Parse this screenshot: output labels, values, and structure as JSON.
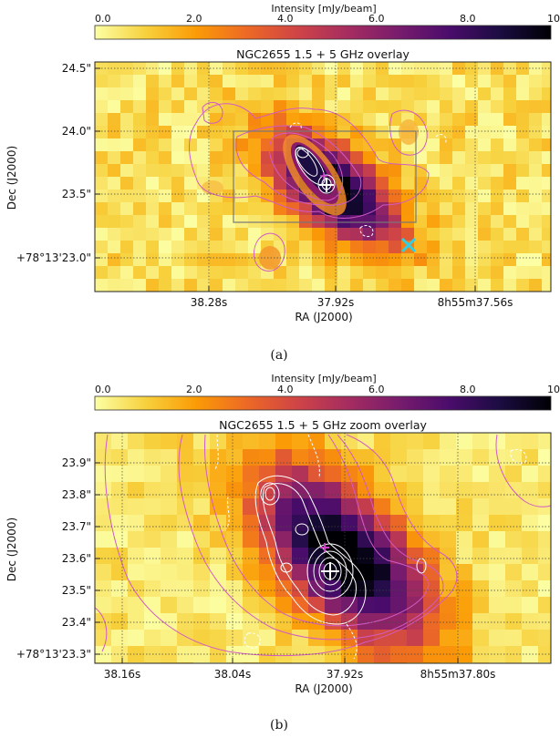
{
  "colorbar": {
    "title": "Intensity [mJy/beam]",
    "ticks": [
      "0.0",
      "2.0",
      "4.0",
      "6.0",
      "8.0",
      "10.0"
    ],
    "range": [
      0,
      10
    ],
    "colormap": "inferno_r",
    "colors": [
      "#fcffa4",
      "#f7d13d",
      "#fb9b06",
      "#ed6925",
      "#cf4446",
      "#a52c60",
      "#781c6d",
      "#4a0c6b",
      "#1b0c41",
      "#000004"
    ]
  },
  "chart_data": [
    {
      "type": "heatmap",
      "panel": "a",
      "title": "NGC2655 1.5 + 5 GHz overlay",
      "xlabel": "RA (J2000)",
      "ylabel": "Dec (J2000)",
      "xticks": [
        "38.28s",
        "37.92s",
        "8h55m37.56s"
      ],
      "yticks": [
        "+78°13'23.0\"",
        "23.5\"",
        "24.0\"",
        "24.5\""
      ],
      "ytick_values": [
        23.0,
        23.5,
        24.0,
        24.5
      ],
      "ylim": [
        22.75,
        24.55
      ],
      "xlim_seconds": [
        38.47,
        37.42
      ],
      "grid": true,
      "caption": "(a)",
      "emission_peak": {
        "ra_s": 37.92,
        "dec_arcsec": 23.56
      },
      "zoom_box": {
        "ra_s": [
          38.12,
          37.62
        ],
        "dec_arcsec": [
          23.28,
          24.0
        ]
      },
      "cyan_cross": {
        "ra_s": 37.6,
        "dec_arcsec": 23.1
      },
      "markers": [
        {
          "name": "white-cross",
          "ra_s": 37.92,
          "dec_arcsec": 23.56,
          "color": "#ffffff"
        },
        {
          "name": "magenta-cross",
          "ra_s": 37.93,
          "dec_arcsec": 23.63,
          "color": "#d13fc9"
        }
      ]
    },
    {
      "type": "heatmap",
      "panel": "b",
      "title": "NGC2655 1.5 + 5 GHz zoom overlay",
      "xlabel": "RA (J2000)",
      "ylabel": "Dec (J2000)",
      "xticks": [
        "38.16s",
        "38.04s",
        "37.92s",
        "8h55m37.80s"
      ],
      "yticks": [
        "+78°13'23.3\"",
        "23.4\"",
        "23.5\"",
        "23.6\"",
        "23.7\"",
        "23.8\"",
        "23.9\""
      ],
      "ytick_values": [
        23.3,
        23.4,
        23.5,
        23.6,
        23.7,
        23.8,
        23.9
      ],
      "ylim": [
        23.27,
        23.98
      ],
      "xlim_seconds": [
        38.2,
        37.72
      ],
      "grid": true,
      "caption": "(b)",
      "emission_peak": {
        "ra_s": 37.938,
        "dec_arcsec": 23.6
      },
      "markers": [
        {
          "name": "white-cross",
          "ra_s": 37.925,
          "dec_arcsec": 23.56,
          "color": "#ffffff"
        },
        {
          "name": "magenta-cross",
          "ra_s": 37.945,
          "dec_arcsec": 23.63,
          "color": "#d13fc9"
        }
      ]
    }
  ]
}
